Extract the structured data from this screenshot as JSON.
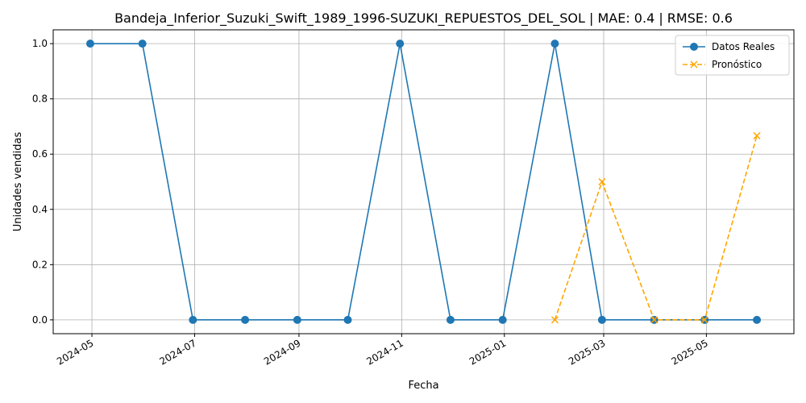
{
  "chart_data": {
    "type": "line",
    "title": "Bandeja_Inferior_Suzuki_Swift_1989_1996-SUZUKI_REPUESTOS_DEL_SOL | MAE: 0.4 | RMSE: 0.6",
    "xlabel": "Fecha",
    "ylabel": "Unidades vendidas",
    "xlim": [
      "2024-04-08",
      "2025-06-22"
    ],
    "ylim": [
      -0.05,
      1.05
    ],
    "x_ticks": [
      "2024-05",
      "2024-07",
      "2024-09",
      "2024-11",
      "2025-01",
      "2025-03",
      "2025-05"
    ],
    "y_ticks": [
      "0.0",
      "0.2",
      "0.4",
      "0.6",
      "0.8",
      "1.0"
    ],
    "grid": true,
    "legend_position": "top-right",
    "series": [
      {
        "name": "Datos Reales",
        "color": "#1f77b4",
        "line_style": "solid",
        "marker": "circle",
        "x": [
          "2024-04-30",
          "2024-05-31",
          "2024-06-30",
          "2024-07-31",
          "2024-08-31",
          "2024-09-30",
          "2024-10-31",
          "2024-11-30",
          "2024-12-31",
          "2025-01-31",
          "2025-02-28",
          "2025-03-31",
          "2025-04-30",
          "2025-05-31"
        ],
        "values": [
          1,
          1,
          0,
          0,
          0,
          0,
          1,
          0,
          0,
          1,
          0,
          0,
          0,
          0
        ]
      },
      {
        "name": "Pronóstico",
        "color": "#ffa500",
        "line_style": "dashed",
        "marker": "x",
        "x": [
          "2025-01-31",
          "2025-02-28",
          "2025-03-31",
          "2025-04-30",
          "2025-05-31"
        ],
        "values": [
          0,
          0.5,
          0,
          0,
          0.6667
        ]
      }
    ]
  }
}
